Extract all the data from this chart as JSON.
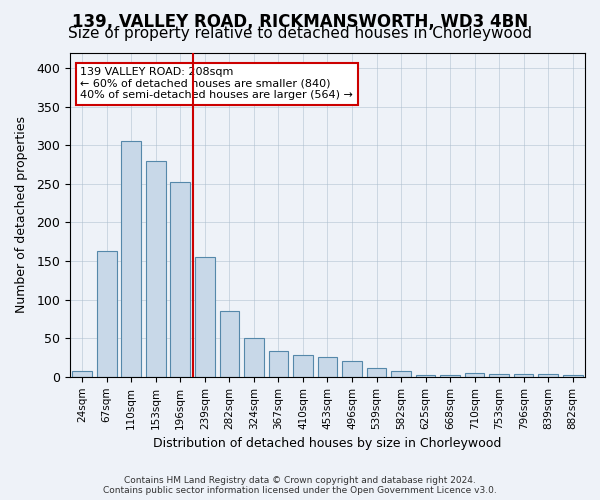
{
  "title_line1": "139, VALLEY ROAD, RICKMANSWORTH, WD3 4BN",
  "title_line2": "Size of property relative to detached houses in Chorleywood",
  "xlabel": "Distribution of detached houses by size in Chorleywood",
  "ylabel": "Number of detached properties",
  "bar_color": "#c8d8e8",
  "bar_edge_color": "#5588aa",
  "vline_color": "#cc0000",
  "vline_x": 4.5,
  "annotation_text": "139 VALLEY ROAD: 208sqm\n← 60% of detached houses are smaller (840)\n40% of semi-detached houses are larger (564) →",
  "annotation_box_color": "#ffffff",
  "annotation_box_edge": "#cc0000",
  "categories": [
    "24sqm",
    "67sqm",
    "110sqm",
    "153sqm",
    "196sqm",
    "239sqm",
    "282sqm",
    "324sqm",
    "367sqm",
    "410sqm",
    "453sqm",
    "496sqm",
    "539sqm",
    "582sqm",
    "625sqm",
    "668sqm",
    "710sqm",
    "753sqm",
    "796sqm",
    "839sqm",
    "882sqm"
  ],
  "values": [
    7,
    163,
    305,
    280,
    252,
    155,
    85,
    50,
    33,
    28,
    26,
    21,
    11,
    7,
    3,
    2,
    5,
    4,
    4,
    4,
    2
  ],
  "ylim": [
    0,
    420
  ],
  "yticks": [
    0,
    50,
    100,
    150,
    200,
    250,
    300,
    350,
    400
  ],
  "background_color": "#eef2f8",
  "plot_bg_color": "#eef2f8",
  "footer_text": "Contains HM Land Registry data © Crown copyright and database right 2024.\nContains public sector information licensed under the Open Government Licence v3.0.",
  "title_fontsize": 12,
  "subtitle_fontsize": 11,
  "bar_width": 0.8
}
